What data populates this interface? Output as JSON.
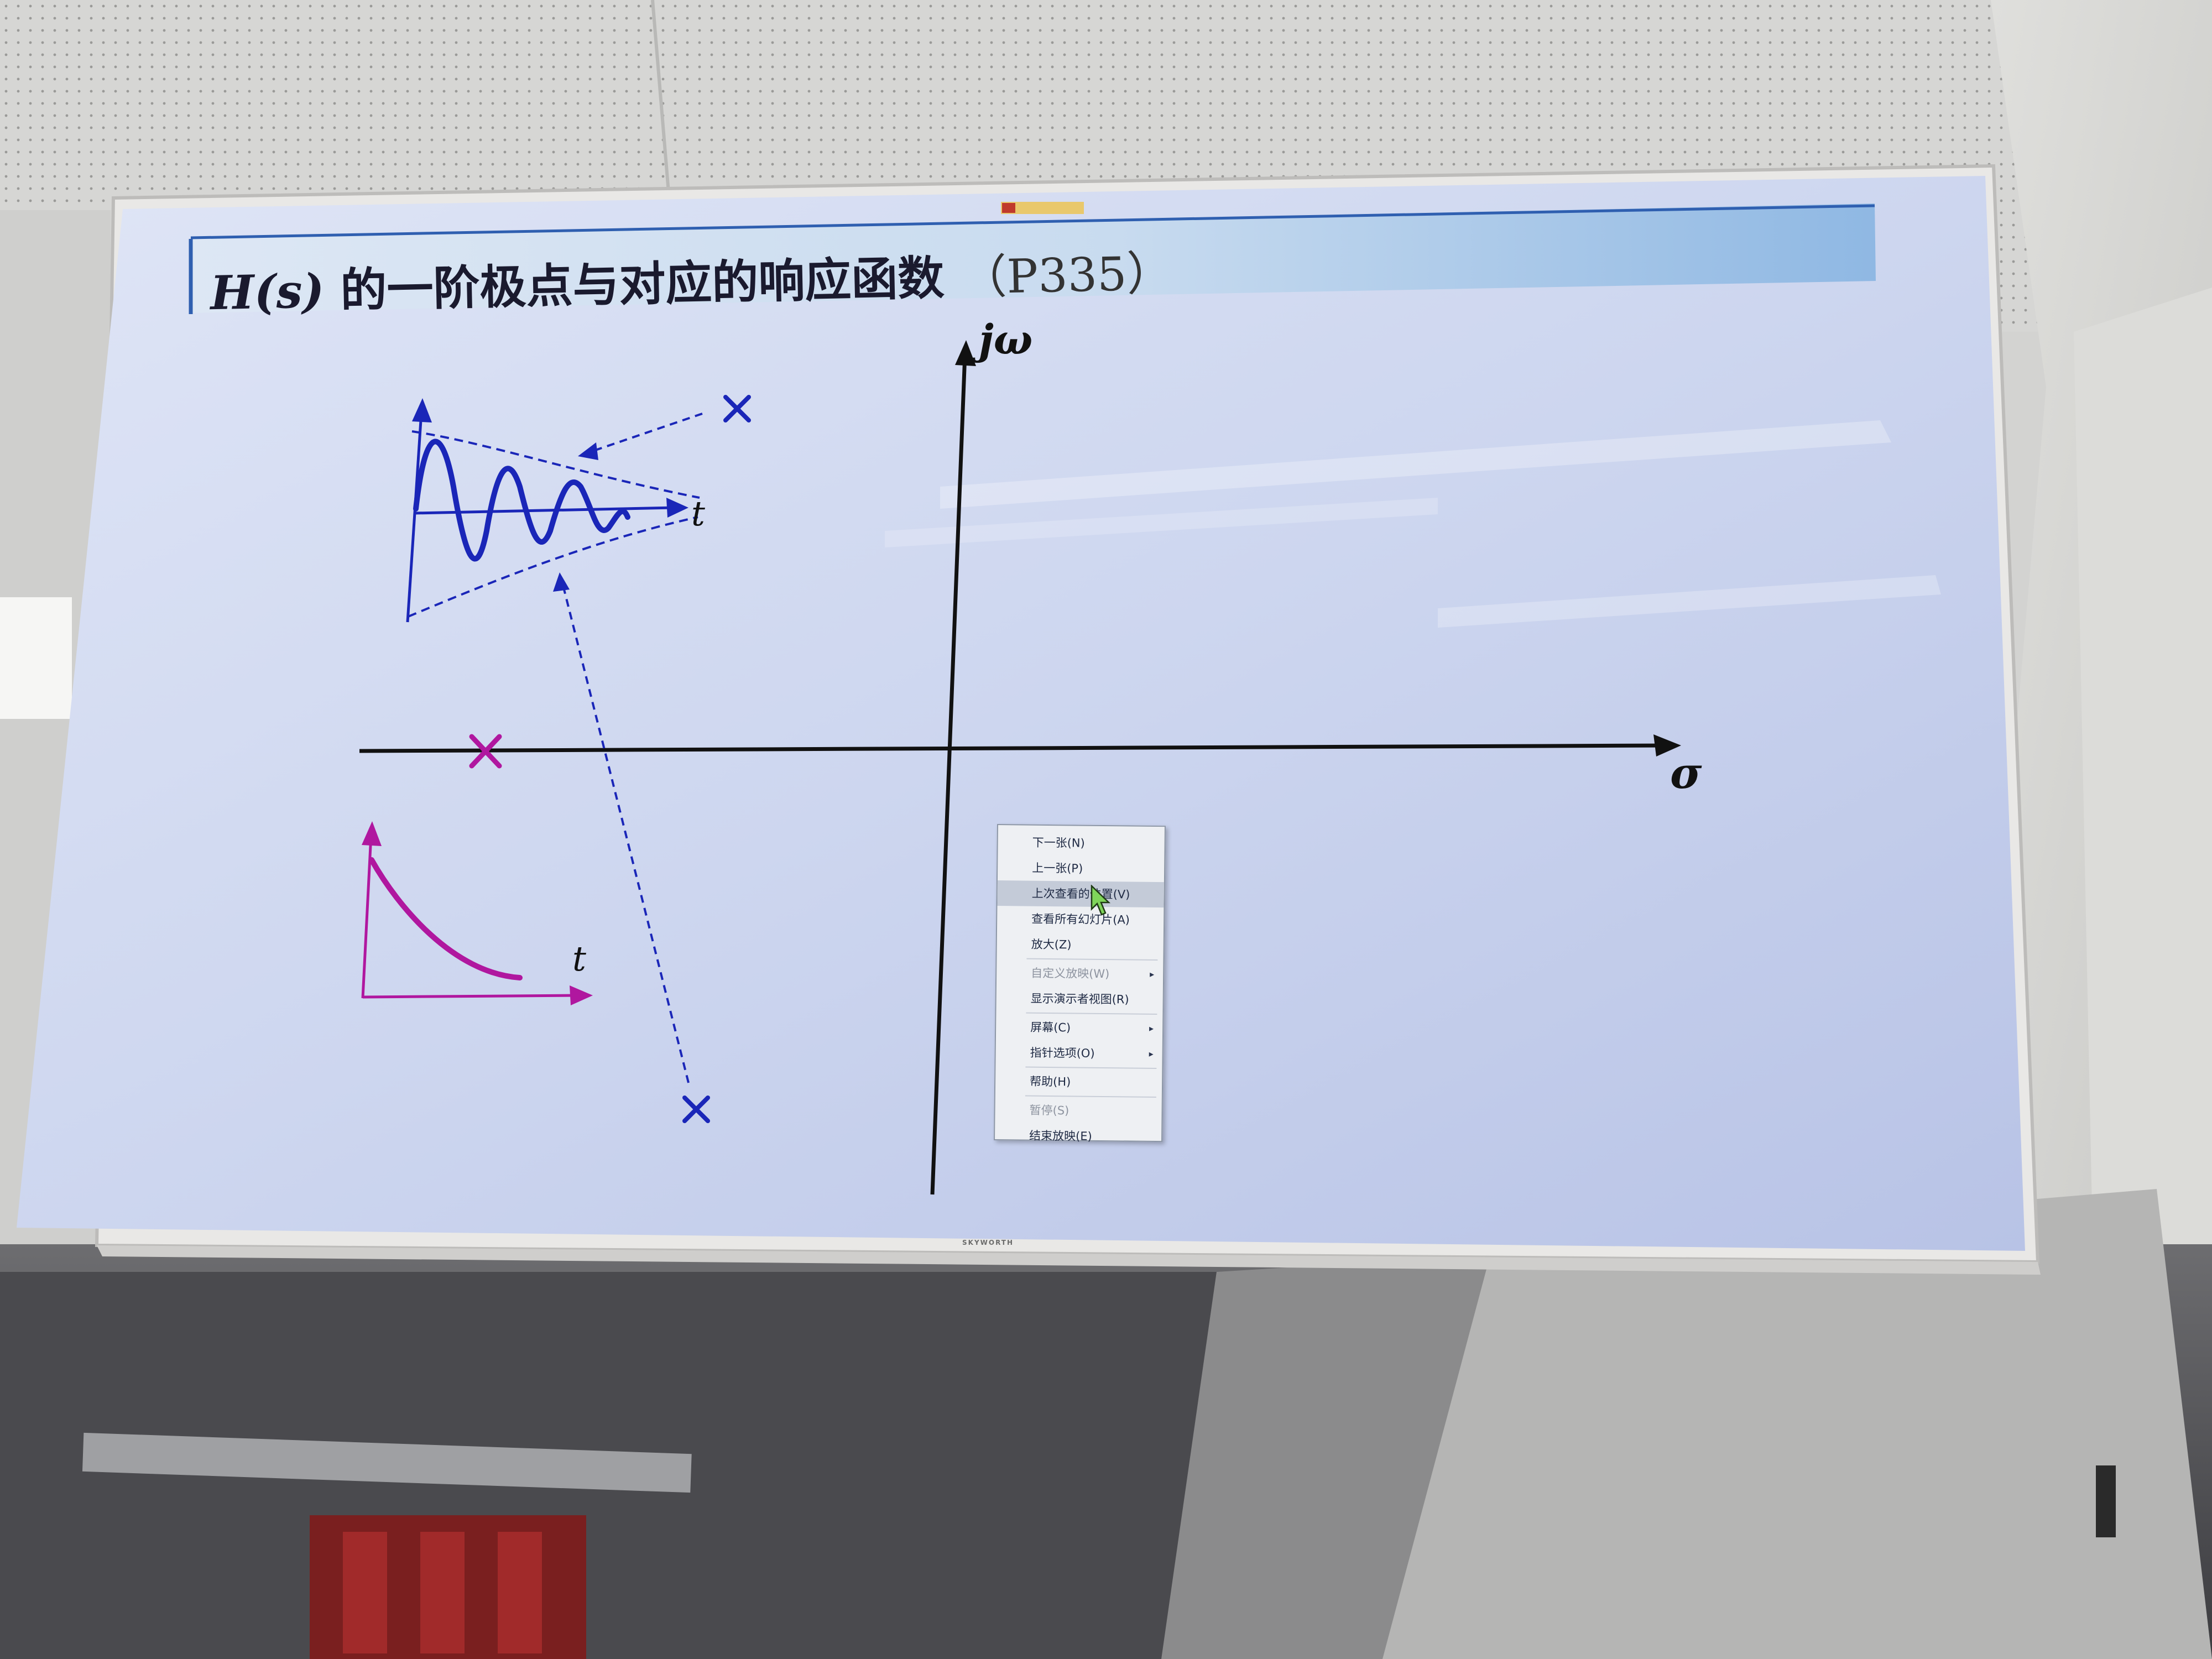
{
  "slide": {
    "title_math": "H(s)",
    "title_text": " 的一阶极点与对应的响应函数",
    "title_ref": "（P335）",
    "axis_jw": "jω",
    "axis_sigma": "σ",
    "t_label_top": "t",
    "t_label_bottom": "t"
  },
  "context_menu": {
    "items": [
      {
        "label": "下一张(N)",
        "disabled": false,
        "submenu": false
      },
      {
        "label": "上一张(P)",
        "disabled": false,
        "submenu": false
      },
      {
        "label": "上次查看的位置(V)",
        "disabled": false,
        "submenu": false,
        "highlight": true
      },
      {
        "label": "查看所有幻灯片(A)",
        "disabled": false,
        "submenu": false
      },
      {
        "label": "放大(Z)",
        "disabled": false,
        "submenu": false
      },
      {
        "label": "自定义放映(W)",
        "disabled": true,
        "submenu": true
      },
      {
        "label": "显示演示者视图(R)",
        "disabled": false,
        "submenu": false
      },
      {
        "label": "屏幕(C)",
        "disabled": false,
        "submenu": true
      },
      {
        "label": "指针选项(O)",
        "disabled": false,
        "submenu": true
      },
      {
        "label": "帮助(H)",
        "disabled": false,
        "submenu": false
      },
      {
        "label": "暂停(S)",
        "disabled": true,
        "submenu": false
      },
      {
        "label": "结束放映(E)",
        "disabled": false,
        "submenu": false
      }
    ],
    "submenu_arrow": "▸"
  },
  "tv": {
    "brand": "SKYWORTH"
  },
  "colors": {
    "slide_bg": "#c9d3ec",
    "pole_blue": "#1a26b8",
    "pole_magenta": "#b0179f",
    "axis": "#111111",
    "title_band": "#a9c6e6"
  }
}
